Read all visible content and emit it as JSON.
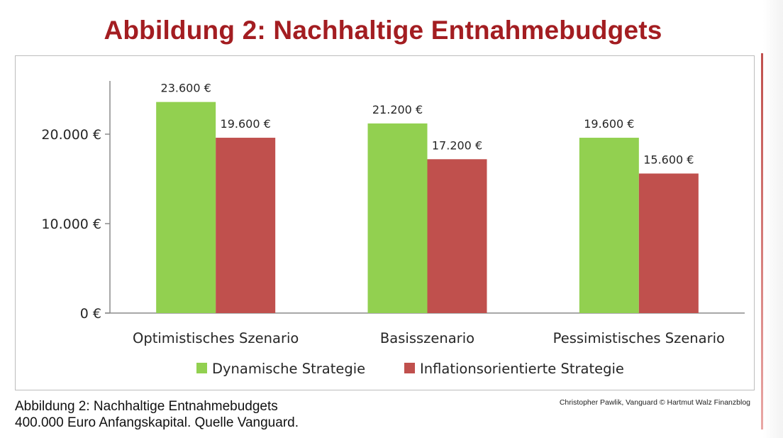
{
  "slide": {
    "title": "Abbildung 2: Nachhaltige Entnahmebudgets",
    "caption_line1": "Abbildung 2: Nachhaltige Entnahmebudgets",
    "caption_line2": "400.000 Euro Anfangskapital. Quelle Vanguard.",
    "credit": "Christopher Pawlik, Vanguard © Hartmut Walz Finanzblog"
  },
  "chart_data": {
    "type": "bar",
    "title": "",
    "xlabel": "",
    "ylabel": "",
    "categories": [
      "Optimistisches Szenario",
      "Basisszenario",
      "Pessimistisches Szenario"
    ],
    "series": [
      {
        "name": "Dynamische Strategie",
        "values": [
          23600,
          21200,
          19600
        ],
        "labels": [
          "23.600 €",
          "21.200 €",
          "19.600 €"
        ],
        "color": "#92d050"
      },
      {
        "name": "Inflationsorientierte Strategie",
        "values": [
          19600,
          17200,
          15600
        ],
        "labels": [
          "19.600 €",
          "17.200 €",
          "15.600 €"
        ],
        "color": "#c0504d"
      }
    ],
    "ylim": [
      0,
      25000
    ],
    "yticks": [
      0,
      10000,
      20000
    ],
    "ytick_labels": [
      "0 €",
      "10.000 €",
      "20.000 €"
    ],
    "grid": false,
    "legend_position": "bottom"
  },
  "colors": {
    "title": "#a31d21",
    "axis": "#8c8c8c",
    "text": "#262626"
  }
}
